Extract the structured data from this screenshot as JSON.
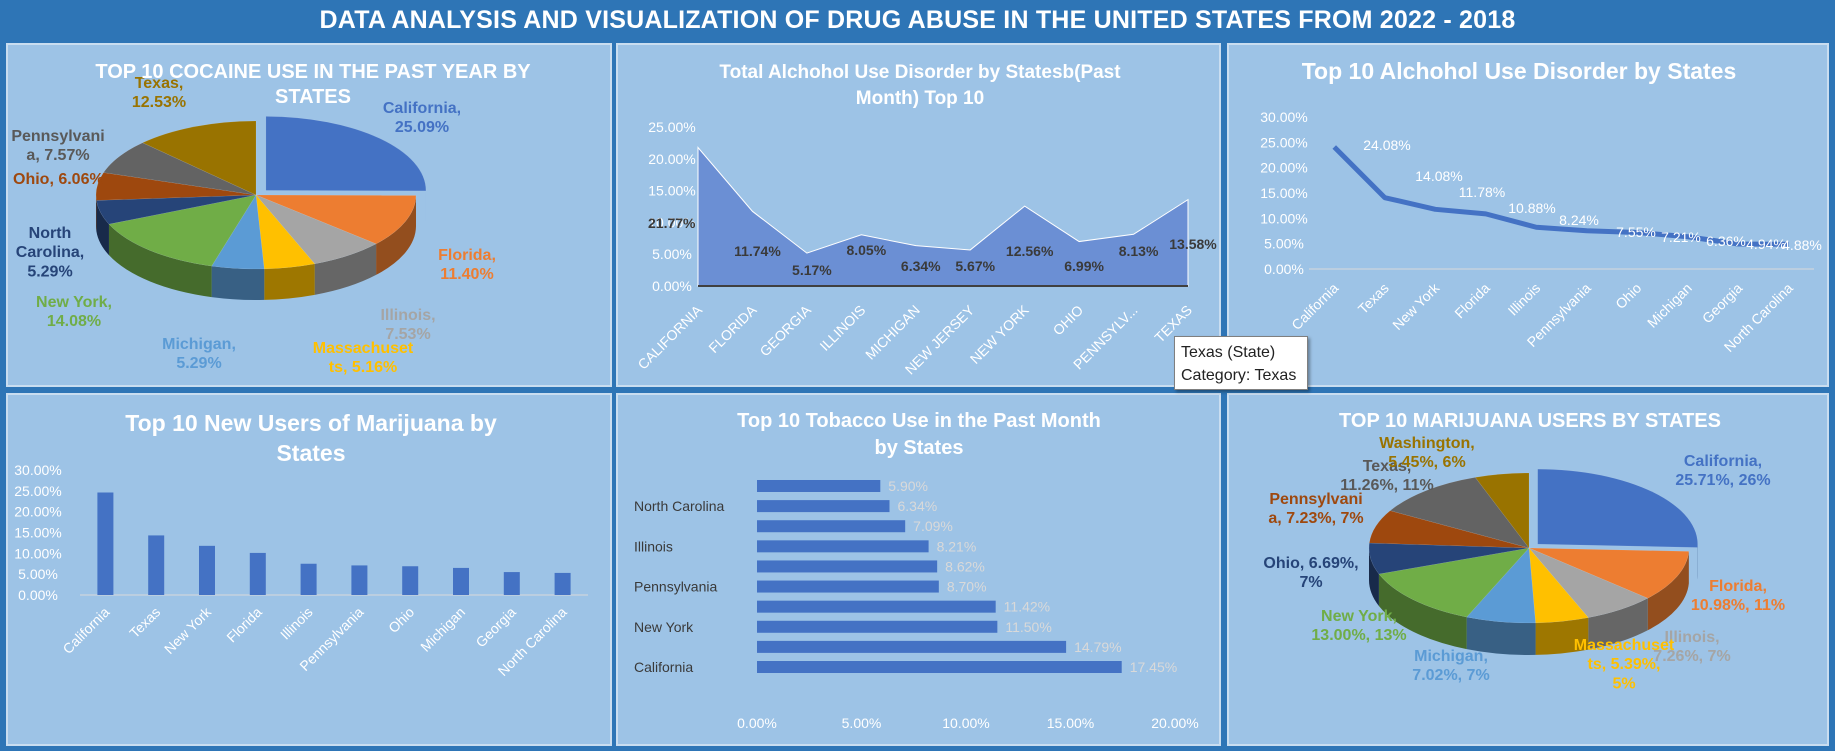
{
  "dashboard": {
    "title": "DATA ANALYSIS AND VISUALIZATION OF DRUG ABUSE IN THE UNITED STATES FROM 2022 - 2018"
  },
  "tooltip": {
    "line1": "Texas (State)",
    "line2": "Category: Texas"
  },
  "colors": {
    "bar": "#4472c4",
    "area": "#6b8fd4",
    "text_dark": "#595959",
    "text_white": "#ffffff",
    "panel": "#9dc3e6"
  },
  "chart_data": [
    {
      "id": "cocaine",
      "type": "pie",
      "title": "TOP 10 COCAINE USE IN THE PAST YEAR BY STATES",
      "slices": [
        {
          "label": "California",
          "value": 25.09,
          "text": "California,\n25.09%",
          "color": "#4472c4"
        },
        {
          "label": "Florida",
          "value": 11.4,
          "text": "Florida,\n11.40%",
          "color": "#ed7d31"
        },
        {
          "label": "Illinois",
          "value": 7.53,
          "text": "Illinois,\n7.53%",
          "color": "#a5a5a5"
        },
        {
          "label": "Massachusetts",
          "value": 5.16,
          "text": "Massachuset\nts, 5.16%",
          "color": "#ffc000"
        },
        {
          "label": "Michigan",
          "value": 5.29,
          "text": "Michigan,\n5.29%",
          "color": "#5b9bd5"
        },
        {
          "label": "New York",
          "value": 14.08,
          "text": "New York,\n14.08%",
          "color": "#70ad47"
        },
        {
          "label": "North Carolina",
          "value": 5.29,
          "text": "North\nCarolina,\n5.29%",
          "color": "#264478"
        },
        {
          "label": "Ohio",
          "value": 6.06,
          "text": "Ohio, 6.06%",
          "color": "#9e480e"
        },
        {
          "label": "Pennsylvania",
          "value": 7.57,
          "text": "Pennsylvani\na, 7.57%",
          "color": "#636363"
        },
        {
          "label": "Texas",
          "value": 12.53,
          "text": "Texas,\n12.53%",
          "color": "#997300"
        }
      ]
    },
    {
      "id": "aud_month",
      "type": "area",
      "title": "Total Alchohol Use Disorder by Statesb(Past Month) Top 10",
      "categories": [
        "CALIFORNIA",
        "FLORIDA",
        "GEORGIA",
        "ILLINOIS",
        "MICHIGAN",
        "NEW JERSEY",
        "NEW YORK",
        "OHIO",
        "PENNSYLV...",
        "TEXAS"
      ],
      "values": [
        21.77,
        11.74,
        5.17,
        8.05,
        6.34,
        5.67,
        12.56,
        6.99,
        8.13,
        13.58
      ],
      "labels": [
        "21.77%",
        "11.74%",
        "5.17%",
        "8.05%",
        "6.34%",
        "5.67%",
        "12.56%",
        "6.99%",
        "8.13%",
        "13.58%"
      ],
      "yticks": [
        "0.00%",
        "5.00%",
        "10.00%",
        "15.00%",
        "20.00%",
        "25.00%"
      ],
      "ylim": [
        0,
        25
      ]
    },
    {
      "id": "aud_top10",
      "type": "line",
      "title": "Top 10 Alchohol Use Disorder by States",
      "categories": [
        "California",
        "Texas",
        "New York",
        "Florida",
        "Illinois",
        "Pennsylvania",
        "Ohio",
        "Michigan",
        "Georgia",
        "North Carolina"
      ],
      "values": [
        24.08,
        14.08,
        11.78,
        10.88,
        8.24,
        7.55,
        7.21,
        6.36,
        4.94,
        4.88
      ],
      "labels": [
        "24.08%",
        "14.08%",
        "11.78%",
        "10.88%",
        "8.24%",
        "7.55%",
        "7.21%",
        "6.36%",
        "4.94%",
        "4.88%"
      ],
      "yticks": [
        "0.00%",
        "5.00%",
        "10.00%",
        "15.00%",
        "20.00%",
        "25.00%",
        "30.00%"
      ],
      "ylim": [
        0,
        30
      ]
    },
    {
      "id": "marijuana_new",
      "type": "bar",
      "title": "Top 10 New Users of Marijuana by States",
      "categories": [
        "California",
        "Texas",
        "New York",
        "Florida",
        "Illinois",
        "Pennsylvania",
        "Ohio",
        "Michigan",
        "Georgia",
        "North Carolina"
      ],
      "values": [
        24.6,
        14.3,
        11.8,
        10.1,
        7.5,
        7.1,
        6.9,
        6.5,
        5.5,
        5.3
      ],
      "yticks": [
        "0.00%",
        "5.00%",
        "10.00%",
        "15.00%",
        "20.00%",
        "25.00%",
        "30.00%"
      ],
      "ylim": [
        0,
        30
      ]
    },
    {
      "id": "tobacco",
      "type": "bar",
      "orientation": "horizontal",
      "title": "Top 10 Tobacco Use in the Past Month by States",
      "categories": [
        "California",
        "",
        "New York",
        "",
        "Pennsylvania",
        "",
        "Illinois",
        "",
        "North Carolina",
        ""
      ],
      "values": [
        17.45,
        14.79,
        11.5,
        11.42,
        8.7,
        8.62,
        8.21,
        7.09,
        6.34,
        5.9
      ],
      "labels": [
        "17.45%",
        "14.79%",
        "11.50%",
        "11.42%",
        "8.70%",
        "8.62%",
        "8.21%",
        "7.09%",
        "6.34%",
        "5.90%"
      ],
      "xticks": [
        "0.00%",
        "5.00%",
        "10.00%",
        "15.00%",
        "20.00%"
      ],
      "xlim": [
        0,
        20
      ]
    },
    {
      "id": "marijuana_users",
      "type": "pie",
      "title": "TOP 10 MARIJUANA USERS BY STATES",
      "slices": [
        {
          "label": "California",
          "value": 25.71,
          "text": "California,\n25.71%, 26%",
          "color": "#4472c4"
        },
        {
          "label": "Florida",
          "value": 10.98,
          "text": "Florida,\n10.98%, 11%",
          "color": "#ed7d31"
        },
        {
          "label": "Illinois",
          "value": 7.26,
          "text": "Illinois,\n7.26%, 7%",
          "color": "#a5a5a5"
        },
        {
          "label": "Massachusetts",
          "value": 5.39,
          "text": "Massachuset\nts, 5.39%,\n5%",
          "color": "#ffc000"
        },
        {
          "label": "Michigan",
          "value": 7.02,
          "text": "Michigan,\n7.02%, 7%",
          "color": "#5b9bd5"
        },
        {
          "label": "New York",
          "value": 13.0,
          "text": "New York,\n13.00%, 13%",
          "color": "#70ad47"
        },
        {
          "label": "Ohio",
          "value": 6.69,
          "text": "Ohio, 6.69%,\n7%",
          "color": "#264478"
        },
        {
          "label": "Pennsylvania",
          "value": 7.23,
          "text": "Pennsylvani\na, 7.23%, 7%",
          "color": "#9e480e"
        },
        {
          "label": "Texas",
          "value": 11.26,
          "text": "Texas,\n11.26%, 11%",
          "color": "#636363"
        },
        {
          "label": "Washington",
          "value": 5.45,
          "text": "Washington,\n5.45%, 6%",
          "color": "#997300"
        }
      ]
    }
  ]
}
